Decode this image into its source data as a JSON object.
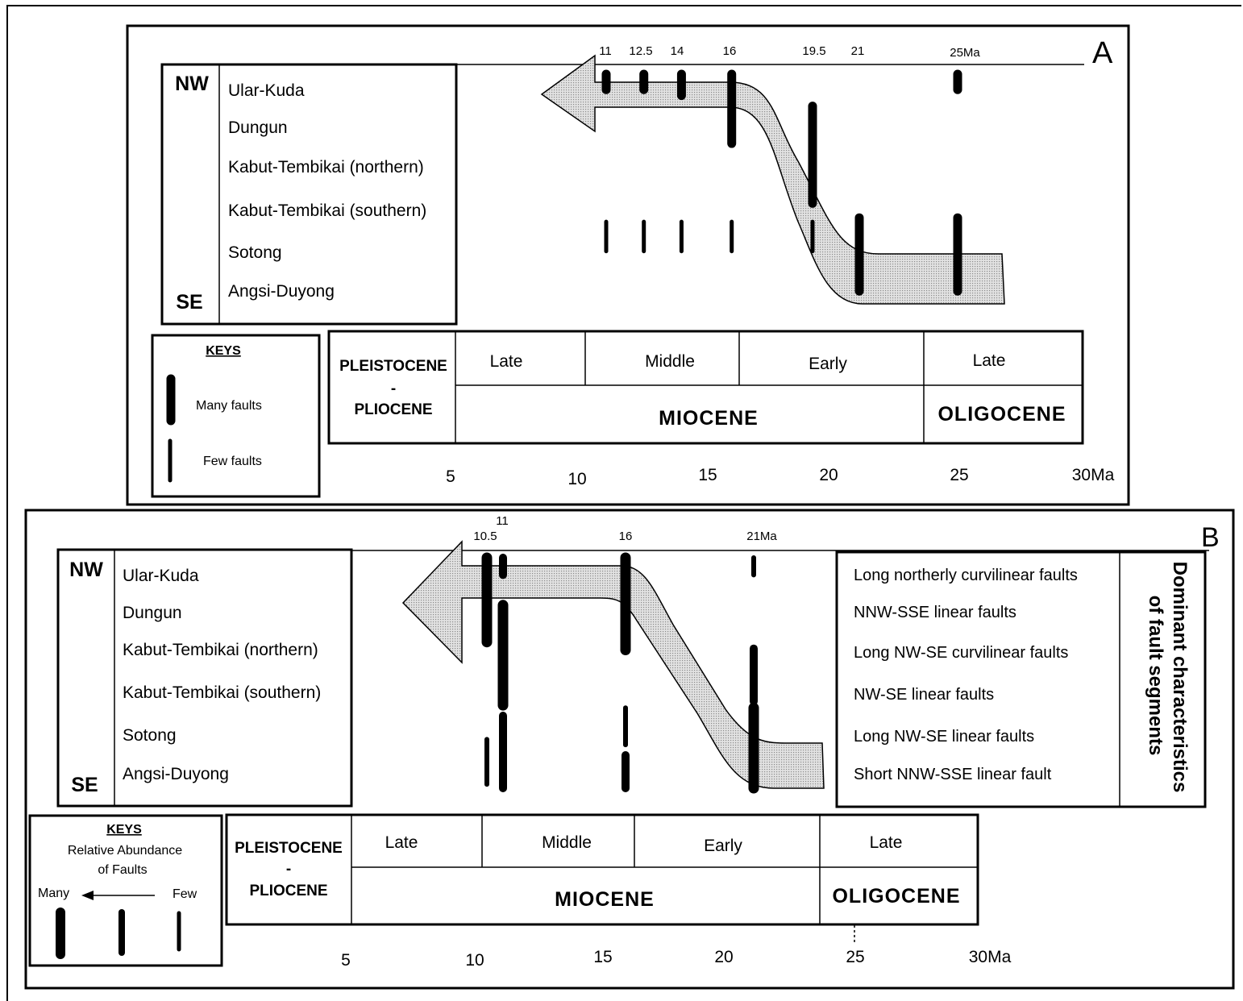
{
  "panels": [
    {
      "id": "A",
      "label": "A",
      "top_ages": [
        "11",
        "12.5",
        "14",
        "16",
        "19.5",
        "21",
        "25Ma"
      ],
      "direction_top": "NW",
      "direction_bottom": "SE",
      "fields": [
        "Ular-Kuda",
        "Dungun",
        "Kabut-Tembikai (northern)",
        "Kabut-Tembikai (southern)",
        "Sotong",
        "Angsi-Duyong"
      ],
      "keys": {
        "title": "KEYS",
        "many": "Many faults",
        "few": "Few faults"
      },
      "timescale": {
        "pleistocene": "PLEISTOCENE",
        "dash": "-",
        "pliocene": "PLIOCENE",
        "sub_epochs": [
          "Late",
          "Middle",
          "Early",
          "Late"
        ],
        "miocene": "MIOCENE",
        "oligocene": "OLIGOCENE"
      },
      "axis_ticks": [
        "5",
        "10",
        "15",
        "20",
        "25",
        "30Ma"
      ],
      "fault_bars": [
        {
          "age": 11,
          "fields": [
            0,
            0.55
          ],
          "size": "many"
        },
        {
          "age": 12.5,
          "fields": [
            0,
            0.55
          ],
          "size": "many"
        },
        {
          "age": 14,
          "fields": [
            0,
            0.7
          ],
          "size": "many"
        },
        {
          "age": 16,
          "fields": [
            0,
            1.9
          ],
          "size": "many"
        },
        {
          "age": 19.5,
          "fields": [
            0.8,
            3.4
          ],
          "size": "many"
        },
        {
          "age": 25,
          "fields": [
            0,
            0.55
          ],
          "size": "many"
        },
        {
          "age": 21,
          "fields": [
            3.6,
            5.6
          ],
          "size": "many"
        },
        {
          "age": 25,
          "fields": [
            3.6,
            5.6
          ],
          "size": "many"
        },
        {
          "age": 11,
          "fields": [
            3.7,
            4.6
          ],
          "size": "few"
        },
        {
          "age": 12.5,
          "fields": [
            3.7,
            4.6
          ],
          "size": "few"
        },
        {
          "age": 14,
          "fields": [
            3.7,
            4.6
          ],
          "size": "few"
        },
        {
          "age": 16,
          "fields": [
            3.7,
            4.6
          ],
          "size": "few"
        },
        {
          "age": 19.5,
          "fields": [
            3.7,
            4.6
          ],
          "size": "few"
        }
      ]
    },
    {
      "id": "B",
      "label": "B",
      "top_ages": [
        "10.5",
        "11",
        "16",
        "21Ma"
      ],
      "direction_top": "NW",
      "direction_bottom": "SE",
      "fields": [
        "Ular-Kuda",
        "Dungun",
        "Kabut-Tembikai (northern)",
        "Kabut-Tembikai (southern)",
        "Sotong",
        "Angsi-Duyong"
      ],
      "characteristics": [
        "Long northerly curvilinear faults",
        "NNW-SSE linear faults",
        "Long NW-SE curvilinear faults",
        "NW-SE linear faults",
        "Long NW-SE linear faults",
        "Short NNW-SSE linear fault"
      ],
      "characteristics_title_1": "Dominant characteristics",
      "characteristics_title_2": "of fault segments",
      "keys": {
        "title": "KEYS",
        "line1": "Relative Abundance",
        "line2": "of Faults",
        "many": "Many",
        "few": "Few"
      },
      "timescale": {
        "pleistocene": "PLEISTOCENE",
        "dash": "-",
        "pliocene": "PLIOCENE",
        "sub_epochs": [
          "Late",
          "Middle",
          "Early",
          "Late"
        ],
        "miocene": "MIOCENE",
        "oligocene": "OLIGOCENE"
      },
      "axis_ticks": [
        "5",
        "10",
        "15",
        "20",
        "25",
        "30Ma"
      ],
      "fault_bars": [
        {
          "age": 10.5,
          "fields": [
            0,
            2.3
          ],
          "size": "many"
        },
        {
          "age": 11,
          "fields": [
            0,
            0.6
          ],
          "size": "medium"
        },
        {
          "age": 11,
          "fields": [
            1.2,
            3.9
          ],
          "size": "many"
        },
        {
          "age": 11,
          "fields": [
            4.0,
            6.0
          ],
          "size": "medium"
        },
        {
          "age": 10.5,
          "fields": [
            4.6,
            5.9
          ],
          "size": "few"
        },
        {
          "age": 16,
          "fields": [
            0,
            2.5
          ],
          "size": "many"
        },
        {
          "age": 16,
          "fields": [
            3.8,
            4.9
          ],
          "size": "few"
        },
        {
          "age": 16,
          "fields": [
            5.0,
            6.0
          ],
          "size": "medium"
        },
        {
          "age": 21,
          "fields": [
            0,
            0.6
          ],
          "size": "few"
        },
        {
          "age": 21,
          "fields": [
            2.3,
            3.8
          ],
          "size": "medium"
        },
        {
          "age": 21,
          "fields": [
            3.8,
            6.0
          ],
          "size": "many"
        }
      ]
    }
  ]
}
